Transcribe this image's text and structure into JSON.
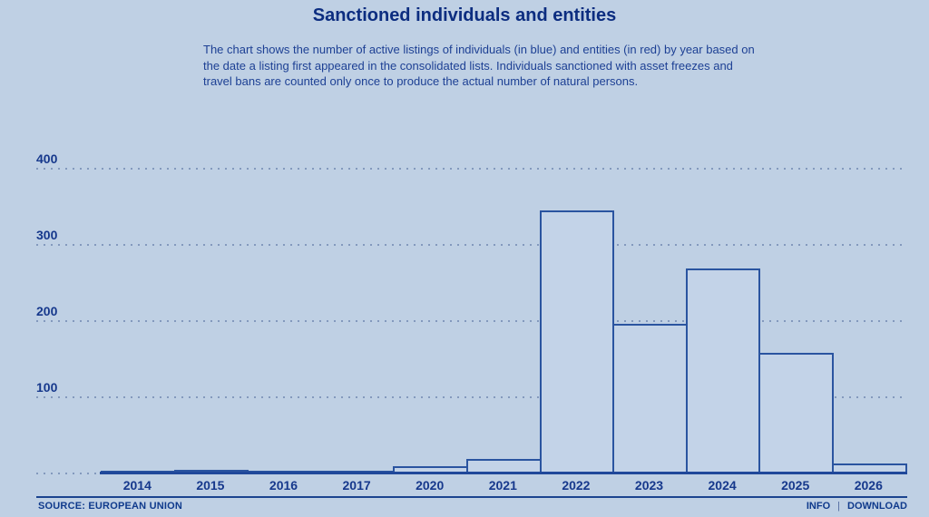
{
  "header": {
    "title": "Sanctioned individuals and entities",
    "description": "The chart shows the number of active listings of individuals (in blue) and entities (in red) by year based on the date a listing first appeared in the consolidated lists. Individuals sanctioned with asset freezes and travel bans are counted only once to produce the actual number of natural persons."
  },
  "footer": {
    "source": "SOURCE: EUROPEAN UNION",
    "info_label": "INFO",
    "separator": "|",
    "download_label": "DOWNLOAD"
  },
  "colors": {
    "background": "#bfd0e4",
    "bar_fill": "#c3d3e8",
    "bar_border": "#2a54a0",
    "title_text": "#0c2d80",
    "body_text": "#1d4094",
    "axis_label": "#16388c",
    "gridline": "#8399bd",
    "baseline": "#20489a",
    "footer_rule": "#1b448f",
    "footer_text": "#0f3a8c"
  },
  "chart_data": {
    "type": "bar",
    "title": "Sanctioned individuals and entities",
    "categories": [
      "2014",
      "2015",
      "2016",
      "2017",
      "2020",
      "2021",
      "2022",
      "2023",
      "2024",
      "2025",
      "2026"
    ],
    "values": [
      2,
      5,
      3,
      1,
      10,
      19,
      345,
      197,
      269,
      158,
      13
    ],
    "series": [
      {
        "name": "individuals (in blue)",
        "values": [
          2,
          5,
          3,
          1,
          10,
          19,
          345,
          197,
          269,
          158,
          13
        ]
      }
    ],
    "xlabel": "",
    "ylabel": "",
    "y_ticks": [
      100,
      200,
      300,
      400
    ],
    "ylim": [
      0,
      430
    ],
    "grid": "dotted horizontal gridlines, zero line dotted left of plot",
    "legend": "none",
    "bar_style": "outlined contiguous histogram bars, fill matches page background"
  }
}
